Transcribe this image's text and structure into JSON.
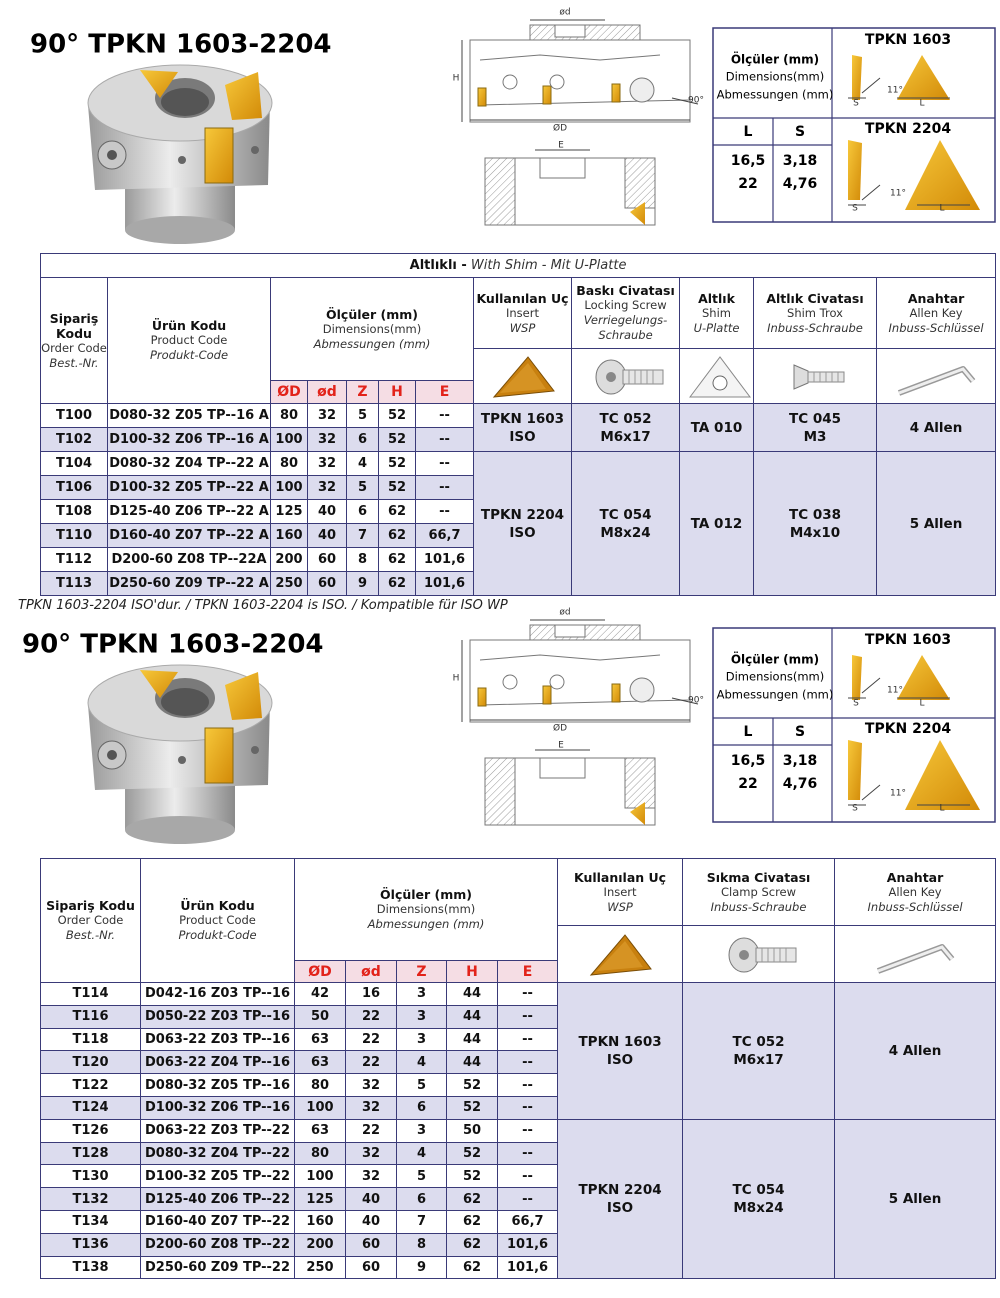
{
  "sections": [
    {
      "title": "90° TPKN 1603-2204",
      "drawing": {
        "bore": "ød",
        "height": "H",
        "diameter": "ØD",
        "angle": "90°",
        "width": "E"
      },
      "dims": {
        "heading": "Ölçüler (mm)",
        "en": "Dimensions(mm)",
        "de": "Abmessungen (mm)",
        "cols": [
          "L",
          "S"
        ],
        "rows": [
          [
            "16,5",
            "3,18"
          ],
          [
            "22",
            "4,76"
          ]
        ],
        "inserts": [
          {
            "name": "TPKN 1603",
            "angle": "11°",
            "s": "S",
            "l": "L"
          },
          {
            "name": "TPKN 2204",
            "angle": "11°",
            "s": "S",
            "l": "L"
          }
        ]
      },
      "table": {
        "caption": {
          "tr": "Altlıklı -",
          "other": "With Shim - Mit U-Platte"
        },
        "order": {
          "title": "Sipariş Kodu",
          "en": "Order Code",
          "de": "Best.-Nr."
        },
        "product": {
          "title": "Ürün Kodu",
          "en": "Product Code",
          "de": "Produkt-Code"
        },
        "dims": {
          "title": "Ölçüler (mm)",
          "en": "Dimensions(mm)",
          "de": "Abmessungen (mm)"
        },
        "sub": [
          "ØD",
          "ød",
          "Z",
          "H",
          "E"
        ],
        "acc": [
          {
            "title": "Kullanılan Uç",
            "en": "Insert",
            "de": "WSP"
          },
          {
            "title": "Baskı Civatası",
            "en": "Locking Screw",
            "de": "Verriegelungs-Schraube"
          },
          {
            "title": "Altlık",
            "en": "Shim",
            "de": "U-Platte"
          },
          {
            "title": "Altlık  Civatası",
            "en": "Shim Trox",
            "de": "Inbuss-Schraube"
          },
          {
            "title": "Anahtar",
            "en": "Allen Key",
            "de": "Inbuss-Schlüssel"
          }
        ],
        "groups": [
          {
            "rows": [
              [
                "T100",
                "D080-32 Z05 TP--16 A",
                80,
                32,
                5,
                52,
                "--"
              ],
              [
                "T102",
                "D100-32 Z06 TP--16 A",
                100,
                32,
                6,
                52,
                "--"
              ]
            ],
            "acc": [
              "TPKN 1603\nISO",
              "TC 052\nM6x17",
              "TA 010",
              "TC 045\nM3",
              "4 Allen"
            ]
          },
          {
            "rows": [
              [
                "T104",
                "D080-32 Z04 TP--22 A",
                80,
                32,
                4,
                52,
                "--"
              ],
              [
                "T106",
                "D100-32 Z05 TP--22 A",
                100,
                32,
                5,
                52,
                "--"
              ],
              [
                "T108",
                "D125-40 Z06 TP--22 A",
                125,
                40,
                6,
                62,
                "--"
              ],
              [
                "T110",
                "D160-40 Z07 TP--22 A",
                160,
                40,
                7,
                62,
                "66,7"
              ],
              [
                "T112",
                "D200-60 Z08 TP--22A",
                200,
                60,
                8,
                62,
                "101,6"
              ],
              [
                "T113",
                "D250-60 Z09 TP--22 A",
                250,
                60,
                9,
                62,
                "101,6"
              ]
            ],
            "acc": [
              "TPKN 2204\nISO",
              "TC 054\nM8x24",
              "TA 012",
              "TC 038\nM4x10",
              "5 Allen"
            ]
          }
        ]
      },
      "note": "TPKN 1603-2204 ISO'dur. / TPKN 1603-2204 is ISO. / Kompatible für ISO WP"
    },
    {
      "title": "90° TPKN 1603-2204",
      "drawing": {
        "bore": "ød",
        "height": "H",
        "diameter": "ØD",
        "angle": "90°",
        "width": "E"
      },
      "dims": {
        "heading": "Ölçüler (mm)",
        "en": "Dimensions(mm)",
        "de": "Abmessungen (mm)",
        "cols": [
          "L",
          "S"
        ],
        "rows": [
          [
            "16,5",
            "3,18"
          ],
          [
            "22",
            "4,76"
          ]
        ],
        "inserts": [
          {
            "name": "TPKN 1603",
            "angle": "11°",
            "s": "S",
            "l": "L"
          },
          {
            "name": "TPKN 2204",
            "angle": "11°",
            "s": "S",
            "l": "L"
          }
        ]
      },
      "table": {
        "order": {
          "title": "Sipariş Kodu",
          "en": "Order Code",
          "de": "Best.-Nr."
        },
        "product": {
          "title": "Ürün Kodu",
          "en": "Product Code",
          "de": "Produkt-Code"
        },
        "dims": {
          "title": "Ölçüler (mm)",
          "en": "Dimensions(mm)",
          "de": "Abmessungen (mm)"
        },
        "sub": [
          "ØD",
          "ød",
          "Z",
          "H",
          "E"
        ],
        "acc": [
          {
            "title": "Kullanılan Uç",
            "en": "Insert",
            "de": "WSP"
          },
          {
            "title": "Sıkma Civatası",
            "en": "Clamp Screw",
            "de": "Inbuss-Schraube"
          },
          {
            "title": "Anahtar",
            "en": "Allen Key",
            "de": "Inbuss-Schlüssel"
          }
        ],
        "groups": [
          {
            "rows": [
              [
                "T114",
                "D042-16 Z03 TP--16",
                42,
                16,
                3,
                44,
                "--"
              ],
              [
                "T116",
                "D050-22 Z03 TP--16",
                50,
                22,
                3,
                44,
                "--"
              ],
              [
                "T118",
                "D063-22 Z03 TP--16",
                63,
                22,
                3,
                44,
                "--"
              ],
              [
                "T120",
                "D063-22 Z04 TP--16",
                63,
                22,
                4,
                44,
                "--"
              ],
              [
                "T122",
                "D080-32 Z05 TP--16",
                80,
                32,
                5,
                52,
                "--"
              ],
              [
                "T124",
                "D100-32 Z06 TP--16",
                100,
                32,
                6,
                52,
                "--"
              ]
            ],
            "acc": [
              "TPKN 1603\nISO",
              "TC 052\nM6x17",
              "4 Allen"
            ]
          },
          {
            "rows": [
              [
                "T126",
                "D063-22 Z03 TP--22",
                63,
                22,
                3,
                50,
                "--"
              ],
              [
                "T128",
                "D080-32 Z04 TP--22",
                80,
                32,
                4,
                52,
                "--"
              ],
              [
                "T130",
                "D100-32 Z05 TP--22",
                100,
                32,
                5,
                52,
                "--"
              ],
              [
                "T132",
                "D125-40 Z06 TP--22",
                125,
                40,
                6,
                62,
                "--"
              ],
              [
                "T134",
                "D160-40 Z07 TP--22",
                160,
                40,
                7,
                62,
                "66,7"
              ],
              [
                "T136",
                "D200-60 Z08 TP--22",
                200,
                60,
                8,
                62,
                "101,6"
              ],
              [
                "T138",
                "D250-60 Z09 TP--22",
                250,
                60,
                9,
                62,
                "101,6"
              ]
            ],
            "acc": [
              "TPKN 2204\nISO",
              "TC 054\nM8x24",
              "5 Allen"
            ]
          }
        ]
      }
    }
  ]
}
